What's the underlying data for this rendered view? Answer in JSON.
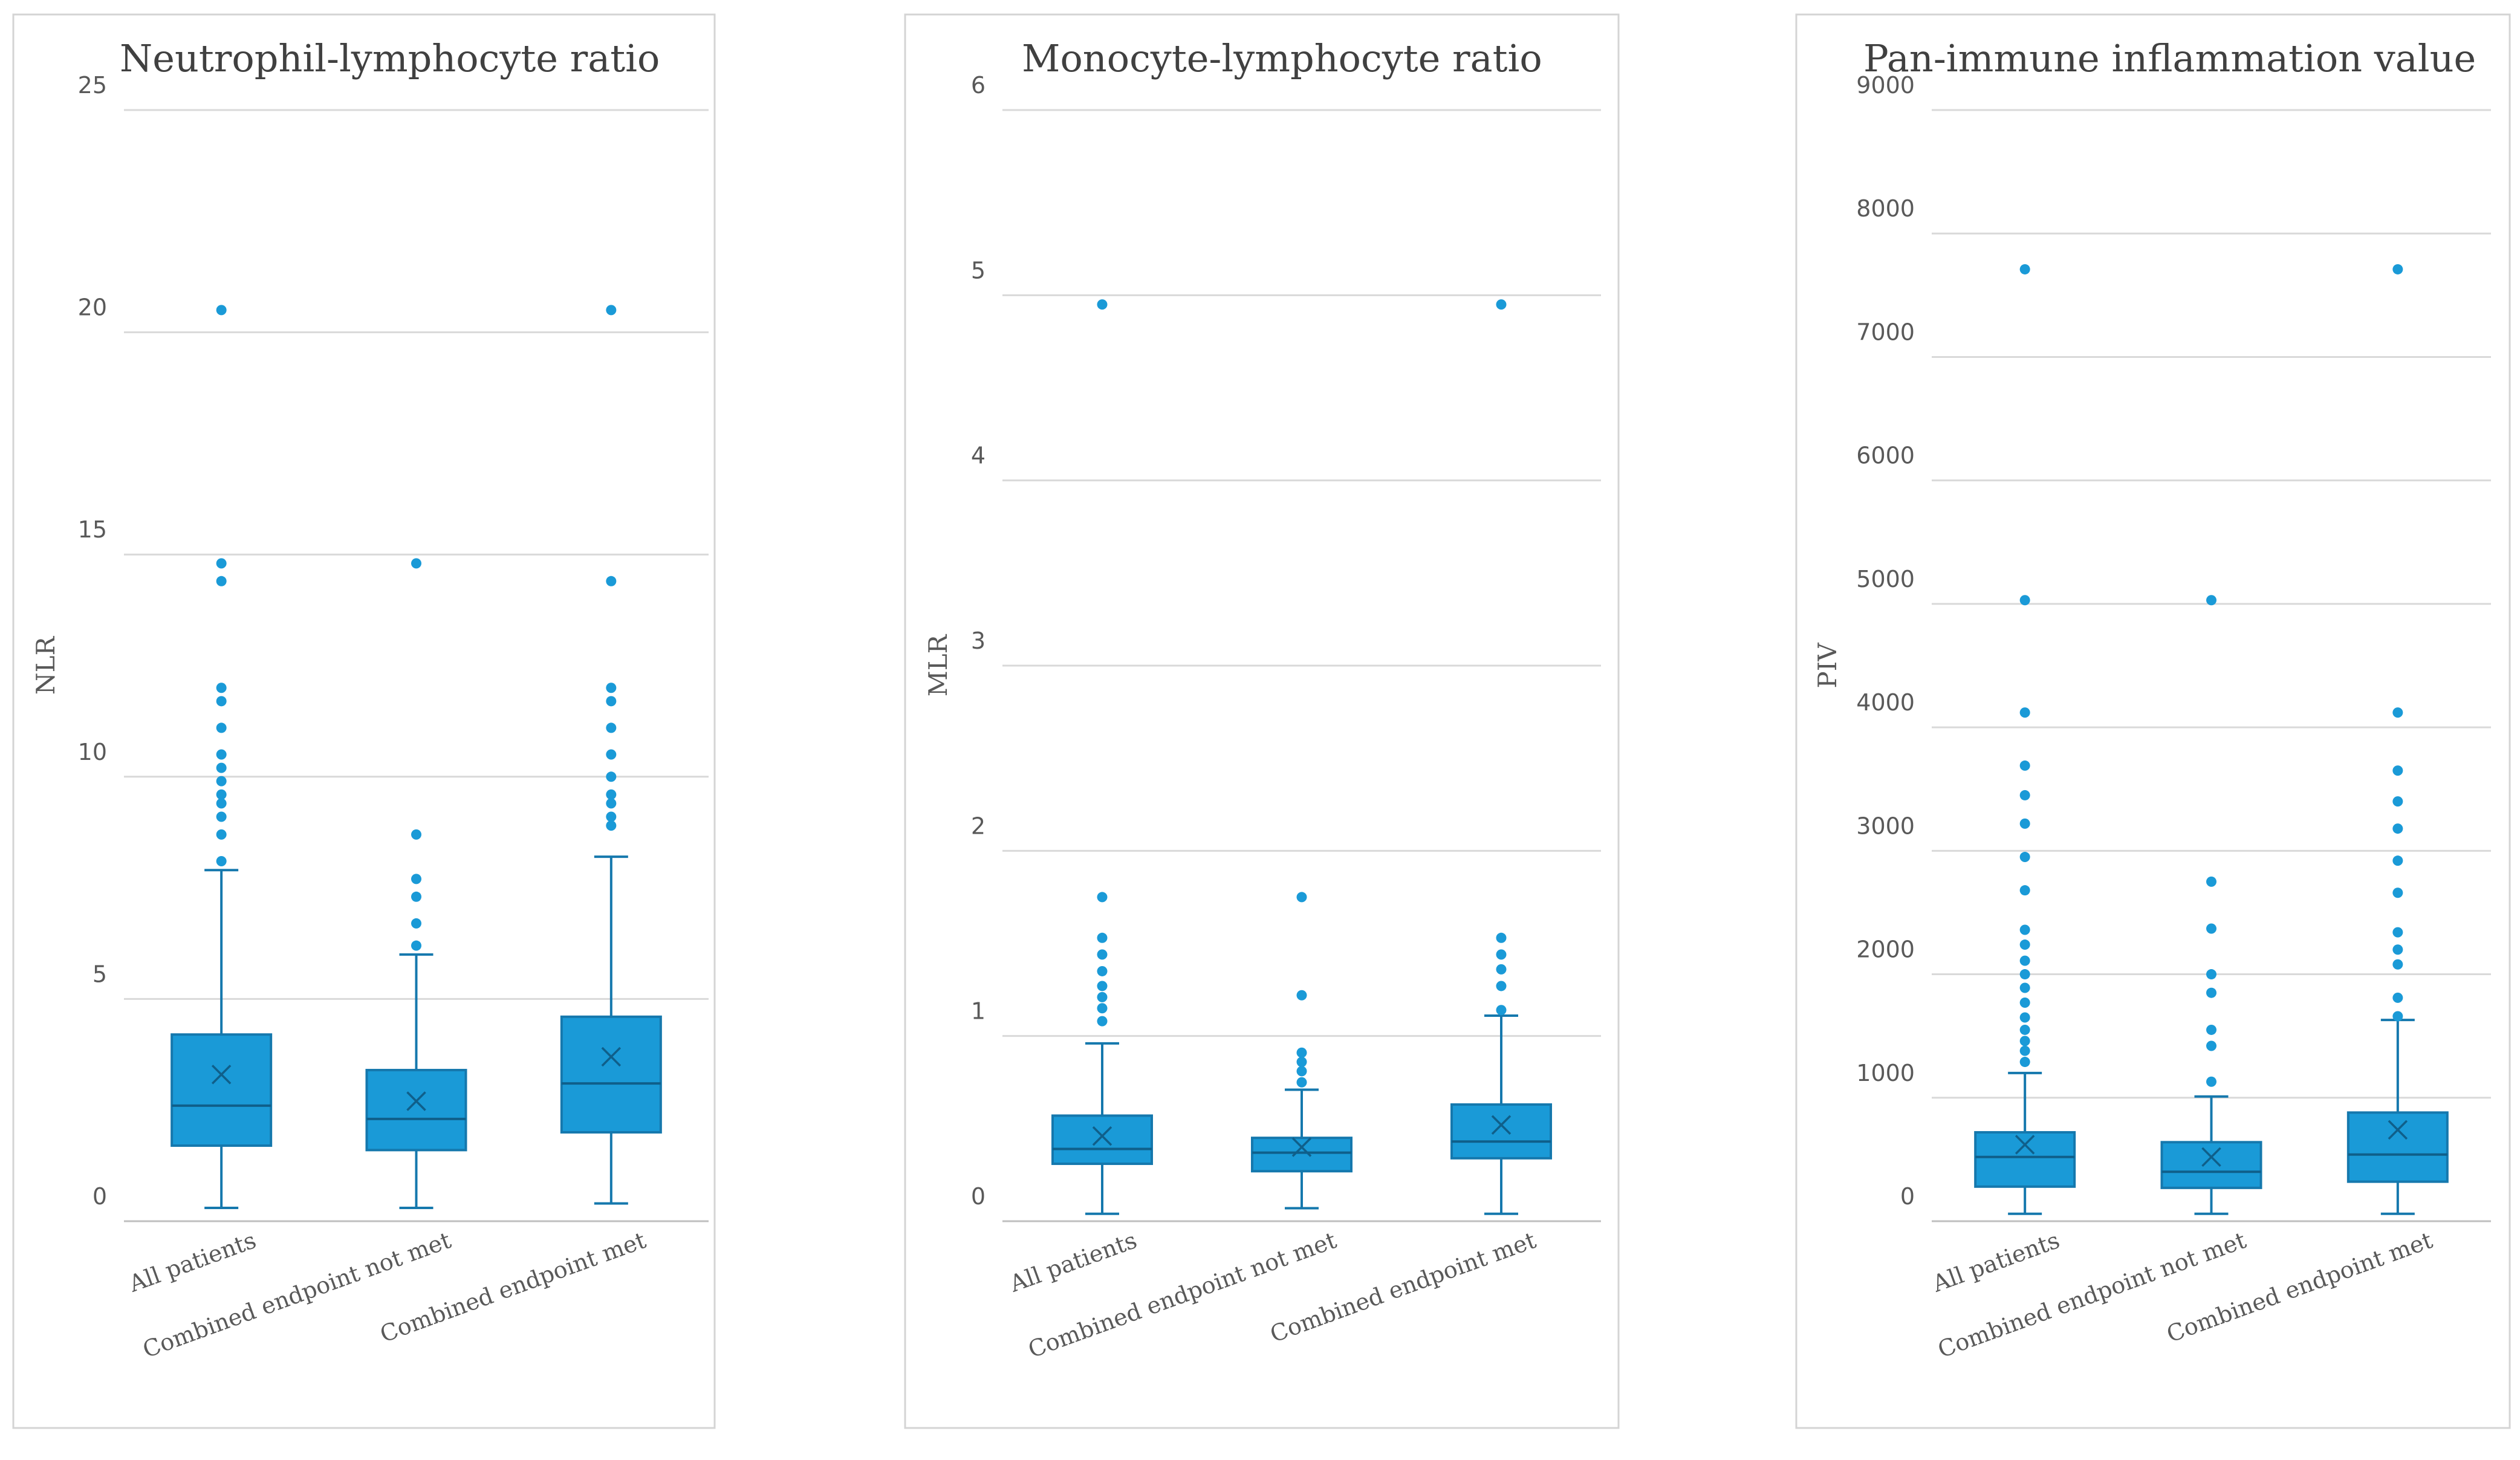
{
  "chart_data": [
    {
      "type": "box",
      "title": "Neutrophil-lymphocyte ratio",
      "xlabel": "",
      "ylabel": "NLR",
      "ylim": [
        0,
        25
      ],
      "yticks": [
        "0",
        "5",
        "10",
        "15",
        "20",
        "25"
      ],
      "grid": true,
      "categories": [
        "All patients",
        "Combined endpoint not met",
        "Combined endpoint met"
      ],
      "boxes": [
        {
          "min": 0.3,
          "q1": 1.7,
          "median": 2.6,
          "q3": 4.2,
          "max": 7.9,
          "mean": 3.3,
          "outliers": [
            8.1,
            8.7,
            9.1,
            9.4,
            9.6,
            9.9,
            10.2,
            10.5,
            11.1,
            11.7,
            12.0,
            14.4,
            14.8,
            20.5
          ]
        },
        {
          "min": 0.3,
          "q1": 1.6,
          "median": 2.3,
          "q3": 3.4,
          "max": 6.0,
          "mean": 2.7,
          "outliers": [
            6.2,
            6.7,
            7.3,
            7.7,
            8.7,
            14.8
          ]
        },
        {
          "min": 0.4,
          "q1": 2.0,
          "median": 3.1,
          "q3": 4.6,
          "max": 8.2,
          "mean": 3.7,
          "outliers": [
            8.9,
            9.1,
            9.4,
            9.6,
            10.0,
            10.5,
            11.1,
            11.7,
            12.0,
            14.4,
            20.5
          ]
        }
      ]
    },
    {
      "type": "box",
      "title": "Monocyte-lymphocyte ratio",
      "xlabel": "",
      "ylabel": "MLR",
      "ylim": [
        0,
        6
      ],
      "yticks": [
        "0",
        "1",
        "2",
        "3",
        "4",
        "5",
        "6"
      ],
      "grid": true,
      "categories": [
        "All patients",
        "Combined endpoint not met",
        "Combined endpoint met"
      ],
      "boxes": [
        {
          "min": 0.04,
          "q1": 0.31,
          "median": 0.39,
          "q3": 0.57,
          "max": 0.96,
          "mean": 0.46,
          "outliers": [
            1.08,
            1.15,
            1.21,
            1.27,
            1.35,
            1.44,
            1.53,
            1.75,
            4.95
          ]
        },
        {
          "min": 0.07,
          "q1": 0.27,
          "median": 0.37,
          "q3": 0.45,
          "max": 0.71,
          "mean": 0.4,
          "outliers": [
            0.75,
            0.81,
            0.86,
            0.91,
            1.22,
            1.75
          ]
        },
        {
          "min": 0.04,
          "q1": 0.34,
          "median": 0.43,
          "q3": 0.63,
          "max": 1.11,
          "mean": 0.52,
          "outliers": [
            1.14,
            1.27,
            1.36,
            1.44,
            1.53,
            4.95
          ]
        }
      ]
    },
    {
      "type": "box",
      "title": "Pan-immune inflammation value",
      "xlabel": "",
      "ylabel": "PIV",
      "ylim": [
        0,
        9000
      ],
      "yticks": [
        "0",
        "1000",
        "2000",
        "3000",
        "4000",
        "5000",
        "6000",
        "7000",
        "8000",
        "9000"
      ],
      "grid": true,
      "categories": [
        "All patients",
        "Combined endpoint not met",
        "Combined endpoint met"
      ],
      "boxes": [
        {
          "min": 60,
          "q1": 280,
          "median": 520,
          "q3": 720,
          "max": 1200,
          "mean": 620,
          "outliers": [
            1290,
            1380,
            1460,
            1550,
            1650,
            1770,
            1890,
            2000,
            2110,
            2240,
            2360,
            2680,
            2950,
            3220,
            3450,
            3690,
            4120,
            5030,
            7710
          ]
        },
        {
          "min": 60,
          "q1": 270,
          "median": 400,
          "q3": 640,
          "max": 1010,
          "mean": 520,
          "outliers": [
            1130,
            1420,
            1550,
            1850,
            2000,
            2370,
            2750,
            5030
          ]
        },
        {
          "min": 60,
          "q1": 320,
          "median": 540,
          "q3": 880,
          "max": 1630,
          "mean": 740,
          "outliers": [
            1660,
            1810,
            2080,
            2200,
            2340,
            2660,
            2920,
            3180,
            3400,
            3650,
            4120,
            7710
          ]
        }
      ]
    }
  ]
}
